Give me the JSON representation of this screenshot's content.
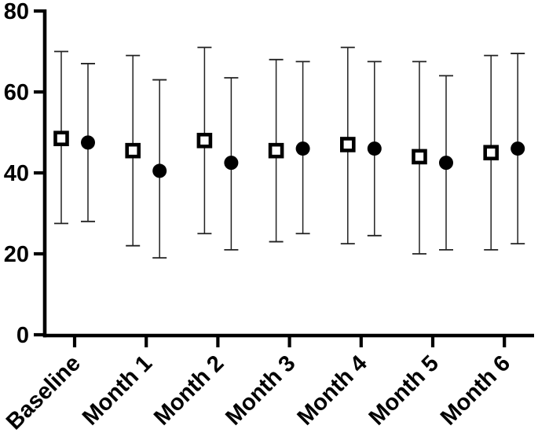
{
  "page": {
    "background": "#ffffff"
  },
  "chart_data": {
    "type": "scatter",
    "subtype": "mean-with-error-bars",
    "title": "",
    "xlabel": "",
    "ylabel": "",
    "categories": [
      "Baseline",
      "Month 1",
      "Month 2",
      "Month 3",
      "Month 4",
      "Month 5",
      "Month 6"
    ],
    "series": [
      {
        "name": "open-square-series",
        "marker": "open-square",
        "values": [
          48.5,
          45.5,
          48,
          45.5,
          47,
          44,
          45
        ],
        "upper": [
          70,
          69,
          71,
          68,
          71,
          67.5,
          69
        ],
        "lower": [
          27.5,
          22,
          25,
          23,
          22.5,
          20,
          21
        ]
      },
      {
        "name": "filled-circle-series",
        "marker": "filled-circle",
        "values": [
          47.5,
          40.5,
          42.5,
          46,
          46,
          42.5,
          46
        ],
        "upper": [
          67,
          63,
          63.5,
          67.5,
          67.5,
          64,
          69.5
        ],
        "lower": [
          28,
          19,
          21,
          25,
          24.5,
          21,
          22.5
        ]
      }
    ],
    "ylim": [
      0,
      80
    ],
    "yticks": [
      0,
      20,
      40,
      60,
      80
    ],
    "grid": false,
    "legend": "none",
    "x_tick_label_rotation_deg": 45,
    "colors": {
      "marker": "#000000",
      "error_bar": "#222222",
      "axis": "#000000",
      "background": "#ffffff"
    }
  }
}
